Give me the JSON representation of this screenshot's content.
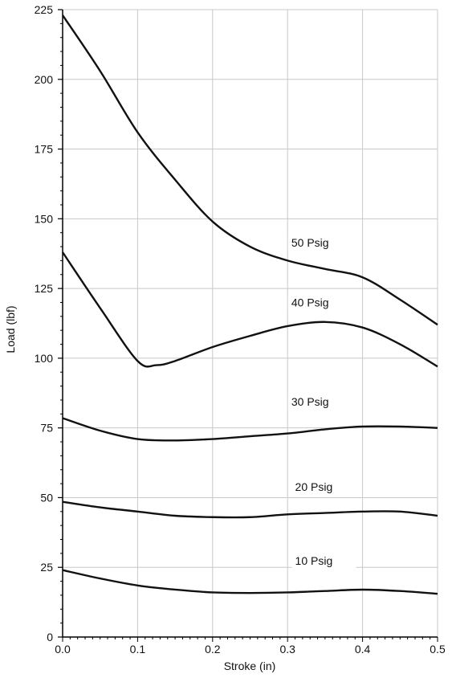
{
  "chart_data": {
    "type": "line",
    "xlabel": "Stroke (in)",
    "ylabel": "Load (lbf)",
    "xlim": [
      0,
      0.5
    ],
    "ylim": [
      0,
      225
    ],
    "x_ticks": [
      "0.0",
      "0.1",
      "0.2",
      "0.3",
      "0.4",
      "0.5"
    ],
    "y_ticks": [
      "0",
      "25",
      "50",
      "75",
      "100",
      "125",
      "150",
      "175",
      "200",
      "225"
    ],
    "grid": true,
    "series": [
      {
        "name": "50 Psig",
        "x": [
          0.0,
          0.05,
          0.1,
          0.15,
          0.2,
          0.25,
          0.3,
          0.35,
          0.4,
          0.45,
          0.5
        ],
        "y": [
          223,
          203,
          181,
          164,
          149,
          140,
          135,
          132,
          129,
          121,
          112
        ]
      },
      {
        "name": "40 Psig",
        "x": [
          0.0,
          0.05,
          0.1,
          0.125,
          0.15,
          0.2,
          0.25,
          0.3,
          0.35,
          0.4,
          0.45,
          0.5
        ],
        "y": [
          138,
          118,
          99,
          97.5,
          99,
          104,
          108,
          111.5,
          113,
          111,
          105,
          97
        ]
      },
      {
        "name": "30 Psig",
        "x": [
          0.0,
          0.05,
          0.1,
          0.15,
          0.2,
          0.25,
          0.3,
          0.35,
          0.4,
          0.45,
          0.5
        ],
        "y": [
          78.5,
          74,
          71,
          70.5,
          71,
          72,
          73,
          74.5,
          75.5,
          75.5,
          75
        ]
      },
      {
        "name": "20 Psig",
        "x": [
          0.0,
          0.05,
          0.1,
          0.15,
          0.2,
          0.25,
          0.3,
          0.35,
          0.4,
          0.45,
          0.5
        ],
        "y": [
          48.5,
          46.5,
          45,
          43.5,
          43,
          43,
          44,
          44.5,
          45,
          45,
          43.5
        ]
      },
      {
        "name": "10 Psig",
        "x": [
          0.0,
          0.05,
          0.1,
          0.15,
          0.2,
          0.25,
          0.3,
          0.35,
          0.4,
          0.45,
          0.5
        ],
        "y": [
          24,
          21,
          18.5,
          17,
          16,
          15.8,
          16,
          16.5,
          17,
          16.5,
          15.5
        ]
      }
    ]
  }
}
